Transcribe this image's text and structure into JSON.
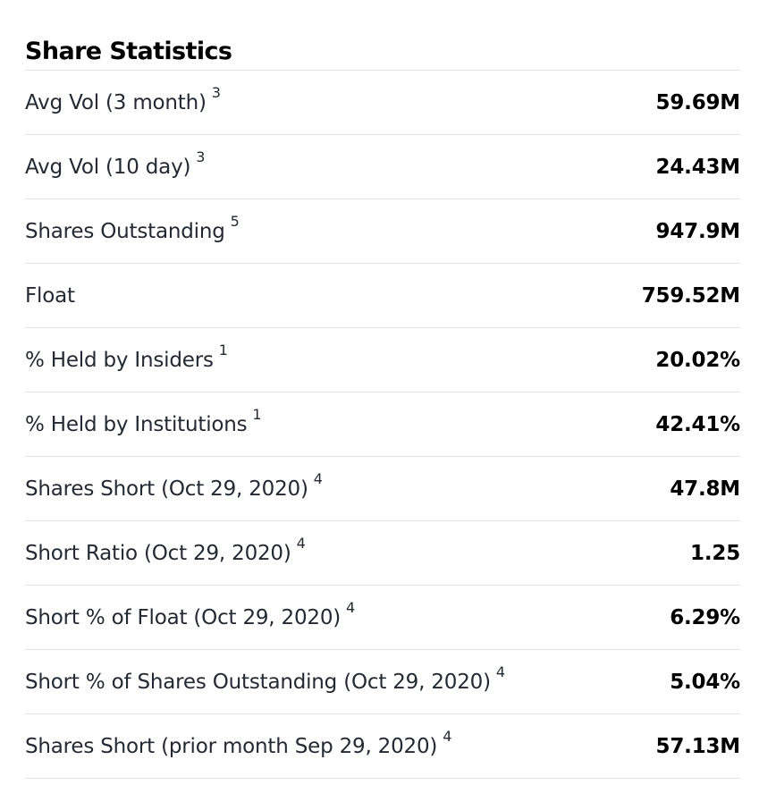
{
  "section": {
    "title": "Share Statistics"
  },
  "rows": [
    {
      "label": "Avg Vol (3 month)",
      "footnote": "3",
      "value": "59.69M"
    },
    {
      "label": "Avg Vol (10 day)",
      "footnote": "3",
      "value": "24.43M"
    },
    {
      "label": "Shares Outstanding",
      "footnote": "5",
      "value": "947.9M"
    },
    {
      "label": "Float",
      "footnote": "",
      "value": "759.52M"
    },
    {
      "label": "% Held by Insiders",
      "footnote": "1",
      "value": "20.02%"
    },
    {
      "label": "% Held by Institutions",
      "footnote": "1",
      "value": "42.41%"
    },
    {
      "label": "Shares Short (Oct 29, 2020)",
      "footnote": "4",
      "value": "47.8M"
    },
    {
      "label": "Short Ratio (Oct 29, 2020)",
      "footnote": "4",
      "value": "1.25"
    },
    {
      "label": "Short % of Float (Oct 29, 2020)",
      "footnote": "4",
      "value": "6.29%"
    },
    {
      "label": "Short % of Shares Outstanding (Oct 29, 2020)",
      "footnote": "4",
      "value": "5.04%"
    },
    {
      "label": "Shares Short (prior month Sep 29, 2020)",
      "footnote": "4",
      "value": "57.13M"
    }
  ]
}
